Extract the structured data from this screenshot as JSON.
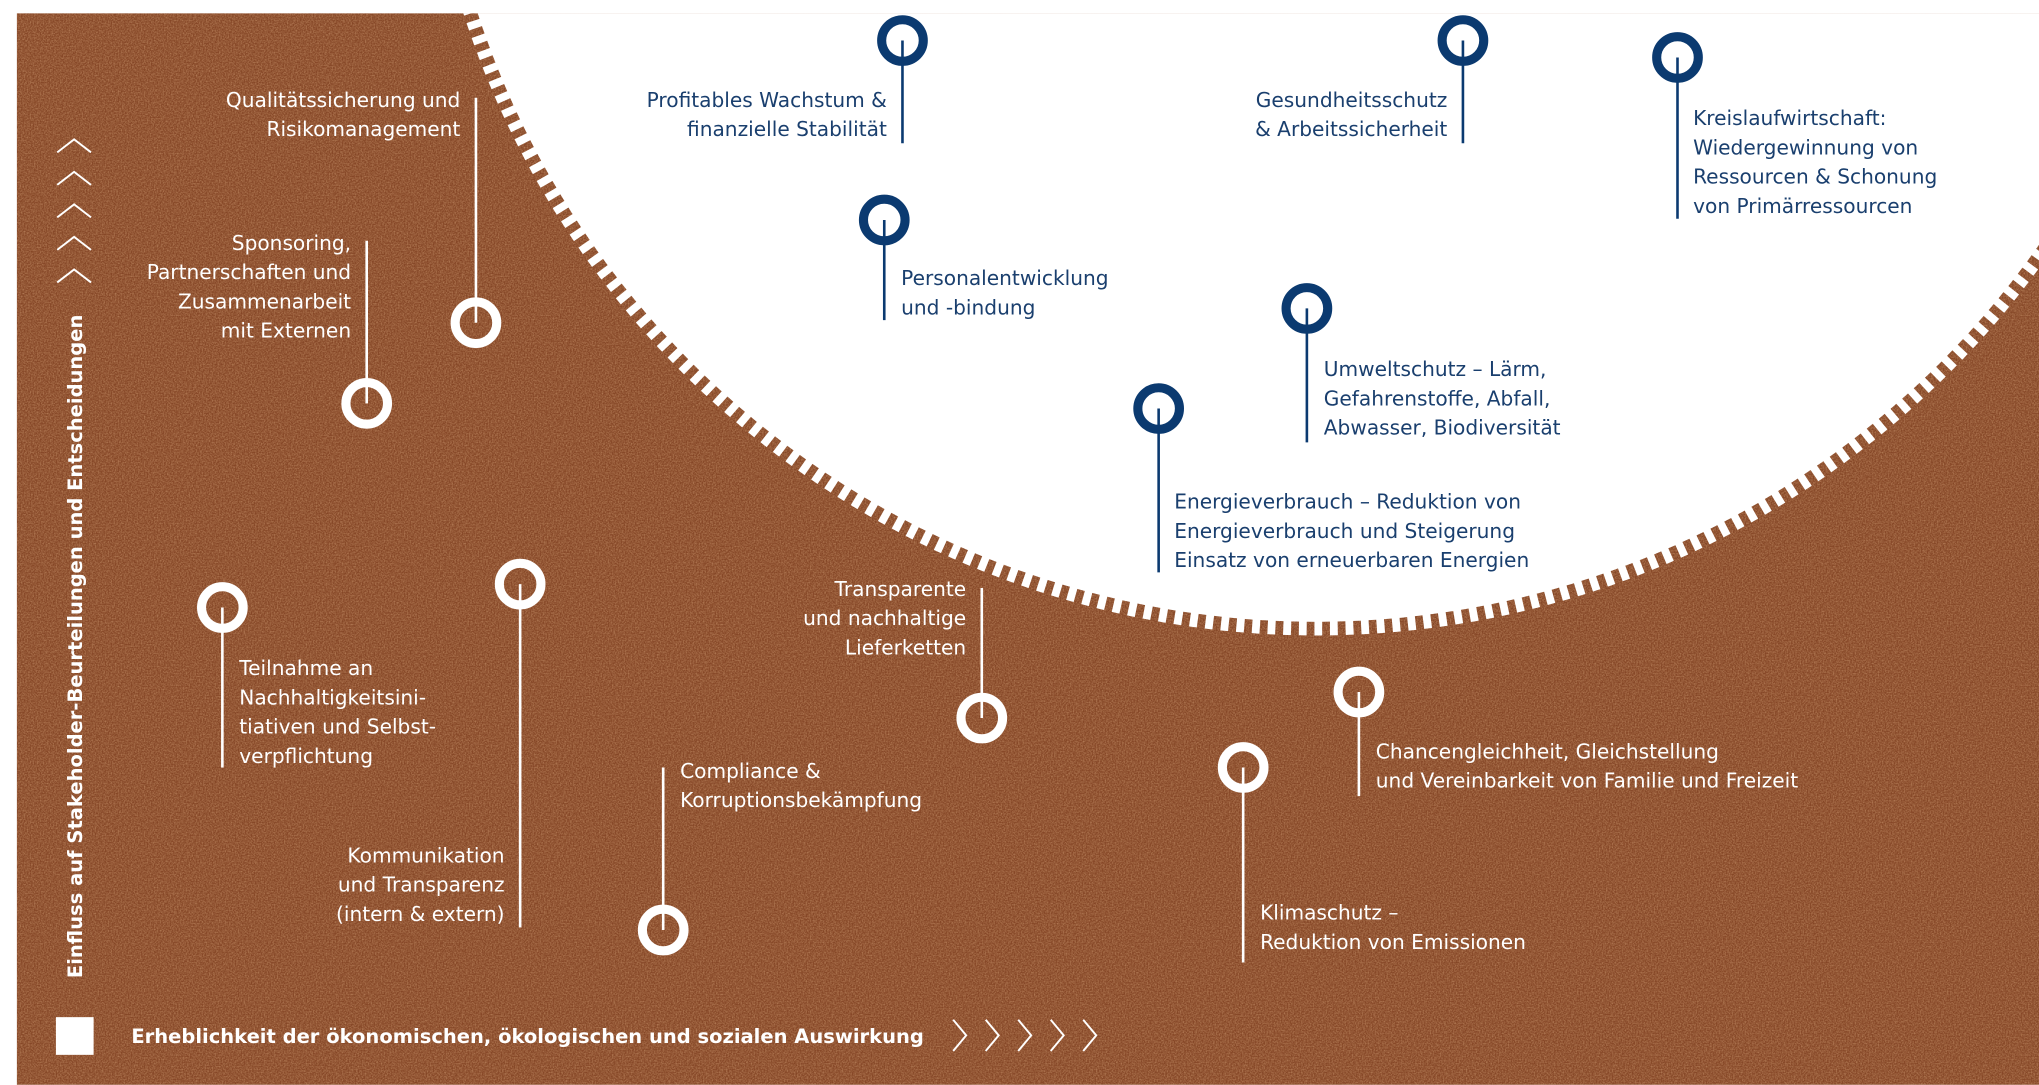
{
  "y_axis_label": "Einfluss auf Stakeholder-Beurteilungen und Entscheidungen",
  "x_axis_label": "Erheblichkeit der ökonomischen, ökologischen und sozialen Auswirkung",
  "nodes": [
    {
      "lines": [
        "Profitables Wachstum &",
        "finanzielle Stabilität"
      ]
    },
    {
      "lines": [
        "Gesundheitsschutz",
        "& Arbeitssicherheit"
      ]
    },
    {
      "lines": [
        "Kreislaufwirtschaft:",
        "Wiedergewinnung von",
        "Ressourcen & Schonung",
        "von Primärressourcen"
      ]
    },
    {
      "lines": [
        "Personalentwicklung",
        "und -bindung"
      ]
    },
    {
      "lines": [
        "Umweltschutz – Lärm,",
        "Gefahrenstoffe, Abfall,",
        "Abwasser, Biodiversität"
      ]
    },
    {
      "lines": [
        "Energieverbrauch – Reduktion von",
        "Energieverbrauch und Steigerung",
        "Einsatz von erneuerbaren Energien"
      ]
    },
    {
      "lines": [
        "Qualitätssicherung und",
        "Risikomanagement"
      ]
    },
    {
      "lines": [
        "Sponsoring,",
        "Partnerschaften und",
        "Zusammenarbeit",
        "mit Externen"
      ]
    },
    {
      "lines": [
        "Teilnahme an",
        "Nachhaltigkeitsini-",
        "tiativen und Selbst-",
        "verpflichtung"
      ]
    },
    {
      "lines": [
        "Kommunikation",
        "und Transparenz",
        "(intern & extern)"
      ]
    },
    {
      "lines": [
        "Transparente",
        "und nachhaltige",
        "Lieferketten"
      ]
    },
    {
      "lines": [
        "Compliance &",
        "Korruptionsbekämpfung"
      ]
    },
    {
      "lines": [
        "Chancengleichheit, Gleichstellung",
        "und Vereinbarkeit von Familie und Freizeit"
      ]
    },
    {
      "lines": [
        "Klimaschutz –",
        "Reduktion von Emissionen"
      ]
    }
  ]
}
